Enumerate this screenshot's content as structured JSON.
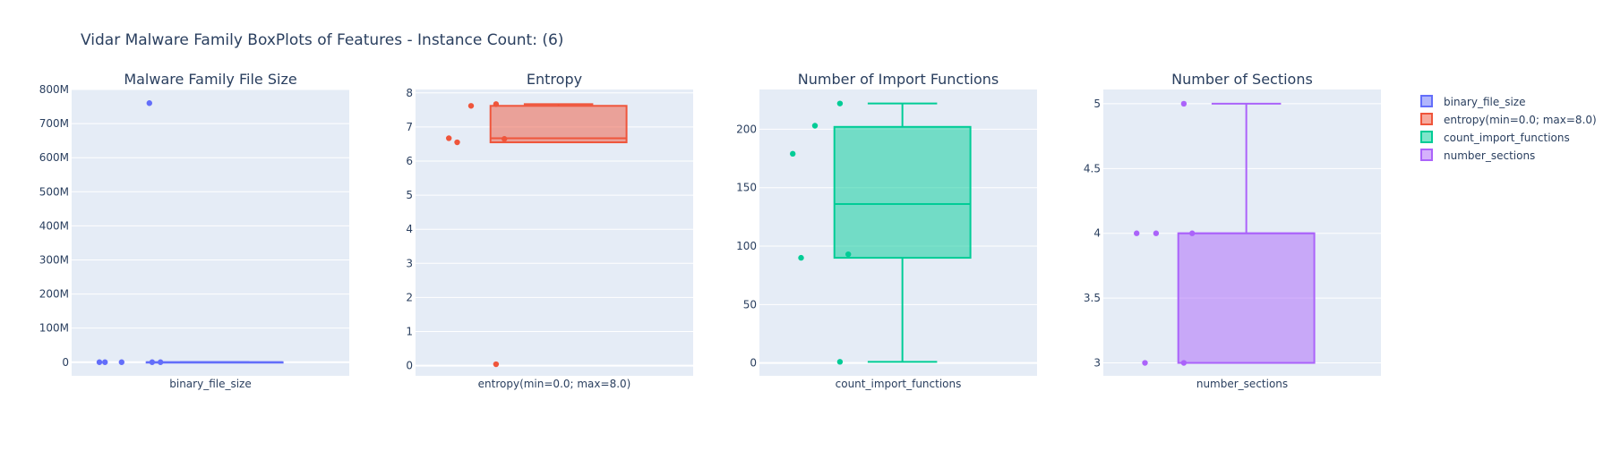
{
  "title": "Vidar Malware Family BoxPlots of Features - Instance Count: (6)",
  "colors": {
    "plot_bg": "#e5ecf6",
    "grid": "#ffffff",
    "text": "#2a3f5f"
  },
  "chart_data": [
    {
      "type": "box",
      "title": "Malware Family File Size",
      "category": "binary_file_size",
      "color": "#636efa",
      "ylim": [
        -40000000,
        800000000
      ],
      "ticks": [
        0,
        100000000,
        200000000,
        300000000,
        400000000,
        500000000,
        600000000,
        700000000,
        800000000
      ],
      "tick_labels": [
        "0",
        "100M",
        "200M",
        "300M",
        "400M",
        "500M",
        "600M",
        "700M",
        "800M"
      ],
      "stats": {
        "min": 0,
        "q1": 0,
        "median": 0,
        "q3": 0,
        "max": 0
      },
      "points": [
        {
          "y": 0,
          "j": 0.1
        },
        {
          "y": 0,
          "j": 0.12
        },
        {
          "y": 0,
          "j": 0.18
        },
        {
          "y": 760000000,
          "j": 0.28
        },
        {
          "y": 0,
          "j": 0.29
        },
        {
          "y": 0,
          "j": 0.32
        }
      ]
    },
    {
      "type": "box",
      "title": "Entropy",
      "category": "entropy(min=0.0; max=8.0)",
      "color": "#ef553b",
      "ylim": [
        -0.3,
        8.1
      ],
      "ticks": [
        0,
        1,
        2,
        3,
        4,
        5,
        6,
        7,
        8
      ],
      "tick_labels": [
        "0",
        "1",
        "2",
        "3",
        "4",
        "5",
        "6",
        "7",
        "8"
      ],
      "stats": {
        "min": 6.55,
        "q1": 6.55,
        "median": 6.67,
        "q3": 7.62,
        "max": 7.67
      },
      "points": [
        {
          "y": 6.67,
          "j": 0.12
        },
        {
          "y": 6.55,
          "j": 0.15
        },
        {
          "y": 7.62,
          "j": 0.2
        },
        {
          "y": 7.67,
          "j": 0.29
        },
        {
          "y": 0.04,
          "j": 0.29
        },
        {
          "y": 6.65,
          "j": 0.32
        }
      ]
    },
    {
      "type": "box",
      "title": "Number of Import Functions",
      "category": "count_import_functions",
      "color": "#00cc96",
      "ylim": [
        -11,
        234
      ],
      "ticks": [
        0,
        50,
        100,
        150,
        200
      ],
      "tick_labels": [
        "0",
        "50",
        "100",
        "150",
        "200"
      ],
      "stats": {
        "min": 1,
        "q1": 90,
        "median": 136,
        "q3": 202,
        "max": 222
      },
      "points": [
        {
          "y": 179,
          "j": 0.12
        },
        {
          "y": 90,
          "j": 0.15
        },
        {
          "y": 203,
          "j": 0.2
        },
        {
          "y": 222,
          "j": 0.29
        },
        {
          "y": 1,
          "j": 0.29
        },
        {
          "y": 93,
          "j": 0.32
        }
      ]
    },
    {
      "type": "box",
      "title": "Number of Sections",
      "category": "number_sections",
      "color": "#ab63fa",
      "ylim": [
        2.9,
        5.11
      ],
      "ticks": [
        3,
        3.5,
        4,
        4.5,
        5
      ],
      "tick_labels": [
        "3",
        "3.5",
        "4",
        "4.5",
        "5"
      ],
      "stats": {
        "min": 3,
        "q1": 3,
        "median": 4,
        "q3": 4,
        "max": 5
      },
      "points": [
        {
          "y": 4,
          "j": 0.12
        },
        {
          "y": 3,
          "j": 0.15
        },
        {
          "y": 4,
          "j": 0.19
        },
        {
          "y": 5,
          "j": 0.29
        },
        {
          "y": 3,
          "j": 0.29
        },
        {
          "y": 4,
          "j": 0.32
        }
      ]
    }
  ],
  "legend": {
    "placement": "top-right",
    "items": [
      {
        "label": "binary_file_size",
        "color": "#636efa"
      },
      {
        "label": "entropy(min=0.0; max=8.0)",
        "color": "#ef553b"
      },
      {
        "label": "count_import_functions",
        "color": "#00cc96"
      },
      {
        "label": "number_sections",
        "color": "#ab63fa"
      }
    ]
  }
}
